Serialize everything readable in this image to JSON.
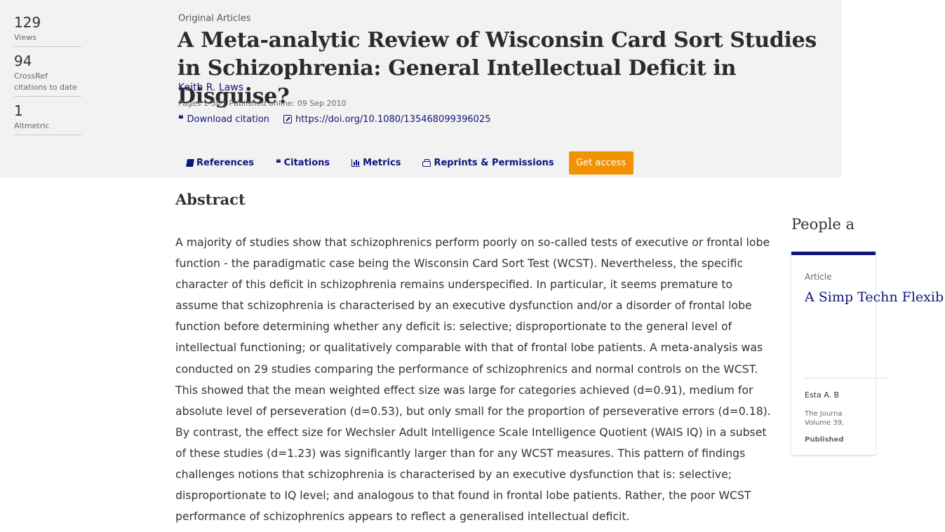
{
  "metrics": [
    {
      "value": "129",
      "label": "Views"
    },
    {
      "value": "94",
      "label": "CrossRef citations to date"
    },
    {
      "value": "1",
      "label": "Altmetric"
    }
  ],
  "article": {
    "type": "Original Articles",
    "title": "A Meta-analytic Review of Wisconsin Card Sort Studies in Schizophrenia: General Intellectual Deficit in Disguise?",
    "author": "Keith R. Laws",
    "pages": "Pages 1-30",
    "published": "Published online: 09 Sep 2010",
    "download_citation": "Download citation",
    "doi": "https://doi.org/10.1080/135468099396025"
  },
  "tabs": {
    "references": "References",
    "citations": "Citations",
    "metrics": "Metrics",
    "reprints": "Reprints & Permissions",
    "get_access": "Get access"
  },
  "abstract": {
    "heading": "Abstract",
    "text": "A majority of studies show that schizophrenics perform poorly on so-called tests of executive or frontal lobe function - the paradigmatic case being the Wisconsin Card Sort Test (WCST). Nevertheless, the specific character of this deficit in schizophrenia remains underspecified. In particular, it seems premature to assume that schizophrenia is characterised by an executive dysfunction and/or a disorder of frontal lobe function before determining whether any deficit is: selective; disproportionate to the general level of intellectual functioning; or qualitatively comparable with that of frontal lobe patients. A meta-analysis was conducted on 29 studies comparing the performance of schizophrenics and normal controls on the WCST. This showed that the mean weighted effect size was large for categories achieved (d=0.91), medium for absolute level of perseveration (d=0.53), but only small for the proportion of perseverative errors (d=0.18). By contrast, the effect size for Wechsler Adult Intelligence Scale Intelligence Quotient (WAIS IQ) in a subset of these studies (d=1.23) was significantly larger than for any WCST measures. This pattern of findings challenges notions that schizophrenia is characterised by an executive dysfunction that is: selective; disproportionate to IQ level; and analogous to that found in frontal lobe patients. Rather, the poor WCST performance of schizophrenics appears to reflect a generalised intellectual deficit."
  },
  "sidebar": {
    "heading": "People a",
    "card": {
      "type": "Article",
      "title": "A Simp Techn Flexib",
      "author": "Esta A. B",
      "journal_line1": "The Journa",
      "journal_line2": "Volume 39,",
      "published": "Published"
    }
  },
  "colors": {
    "link": "#10147e",
    "accent": "#f39200",
    "header_band": "#f2f2f2"
  }
}
